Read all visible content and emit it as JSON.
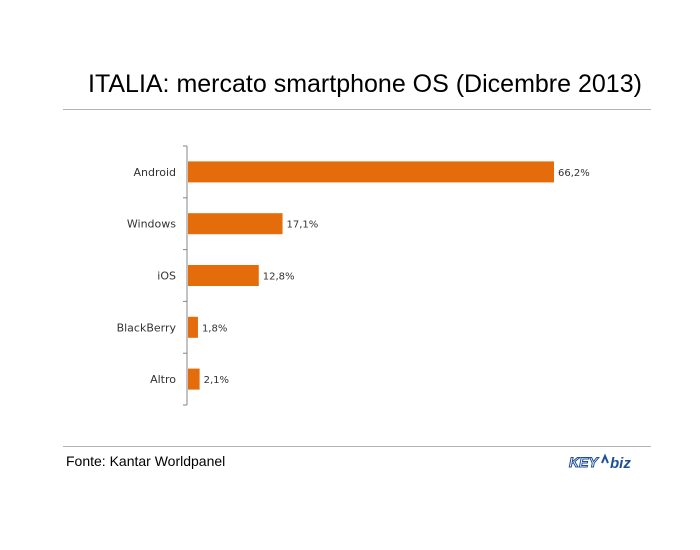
{
  "title": "ITALIA: mercato smartphone OS (Dicembre 2013)",
  "source": "Fonte: Kantar Worldpanel",
  "logo": {
    "text_key": "KEY",
    "text_biz": "biz"
  },
  "colors": {
    "bar": "#e46c0a",
    "axis": "#868686",
    "logo_blue": "#1f4e9c"
  },
  "chart_data": {
    "type": "bar",
    "orientation": "horizontal",
    "categories": [
      "Android",
      "Windows",
      "iOS",
      "BlackBerry",
      "Altro"
    ],
    "values": [
      66.2,
      17.1,
      12.8,
      1.8,
      2.1
    ],
    "value_labels": [
      "66,2%",
      "17,1%",
      "12,8%",
      "1,8%",
      "2,1%"
    ],
    "unit": "%",
    "xlim": [
      0,
      66.2
    ],
    "title": "ITALIA: mercato smartphone OS (Dicembre 2013)",
    "xlabel": "",
    "ylabel": "",
    "grid": false,
    "legend": "none"
  }
}
